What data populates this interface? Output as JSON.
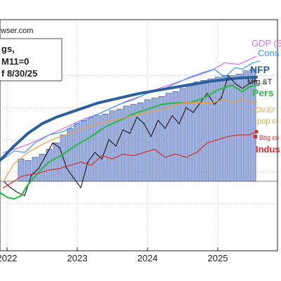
{
  "chart_data": {
    "type": "line",
    "source_text": "wser.com",
    "header_lines": [
      "gs,",
      "M11=0",
      "f 8/30/25"
    ],
    "x_tick_labels": [
      "2022",
      "2023",
      "2024",
      "2025"
    ],
    "x_tick_years": [
      2022,
      2023,
      2024,
      2025
    ],
    "xlim": [
      2021.9,
      2025.85
    ],
    "ylim": [
      0,
      100
    ],
    "bar_series": {
      "name": "GDP (S",
      "color": "#9aaee0",
      "x": [
        2022.2,
        2022.3,
        2022.4,
        2022.5,
        2022.6,
        2022.7,
        2022.8,
        2022.9,
        2023.0,
        2023.1,
        2023.2,
        2023.3,
        2023.4,
        2023.5,
        2023.6,
        2023.7,
        2023.8,
        2023.9,
        2024.0,
        2024.1,
        2024.2,
        2024.3,
        2024.4,
        2024.5,
        2024.6,
        2024.7,
        2024.8,
        2024.9,
        2025.0,
        2025.1,
        2025.2,
        2025.3,
        2025.4,
        2025.5
      ],
      "values": [
        28,
        27,
        29,
        31,
        34,
        38,
        43,
        47,
        50,
        52,
        54,
        55,
        56,
        58,
        59,
        61,
        62,
        63,
        65,
        66,
        67,
        69,
        70,
        72,
        74,
        76,
        77,
        78,
        79,
        80,
        80,
        81,
        83,
        84
      ]
    },
    "series": [
      {
        "name": "GDP (S",
        "color": "#e868e8",
        "width": 1.2,
        "x": [
          2021.95,
          2022.1,
          2022.3,
          2022.5,
          2022.7,
          2022.9,
          2023.1,
          2023.3,
          2023.5,
          2023.7,
          2023.9,
          2024.1,
          2024.3,
          2024.5,
          2024.7,
          2024.9,
          2025.1,
          2025.3,
          2025.45,
          2025.55
        ],
        "y": [
          32,
          34,
          37,
          41,
          45,
          49,
          53,
          56,
          60,
          64,
          67,
          71,
          74,
          77,
          80,
          83,
          88,
          87,
          90,
          92
        ]
      },
      {
        "name": "Cons",
        "color": "#3399ff",
        "width": 1.2,
        "x": [
          2021.95,
          2022.1,
          2022.25,
          2022.4,
          2022.6,
          2022.8,
          2023.0,
          2023.2,
          2023.4,
          2023.6,
          2023.8,
          2024.0,
          2024.2,
          2024.4,
          2024.6,
          2024.8,
          2024.95,
          2025.1,
          2025.25,
          2025.35,
          2025.5,
          2025.6
        ],
        "y": [
          28,
          33,
          32,
          38,
          43,
          45,
          50,
          54,
          58,
          62,
          65,
          69,
          71,
          75,
          79,
          82,
          84,
          79,
          85,
          84,
          88,
          89
        ]
      },
      {
        "name": "NFP",
        "color": "#2c5f9e",
        "width": 4,
        "x": [
          2021.9,
          2022.1,
          2022.3,
          2022.5,
          2022.7,
          2022.9,
          2023.1,
          2023.3,
          2023.5,
          2023.7,
          2023.9,
          2024.1,
          2024.3,
          2024.5,
          2024.7,
          2024.9,
          2025.1,
          2025.3,
          2025.55
        ],
        "y": [
          27,
          36,
          44,
          50,
          54,
          57,
          60,
          63,
          65,
          67,
          69,
          70.5,
          72,
          73.5,
          75,
          76.5,
          77.5,
          78.5,
          79
        ]
      },
      {
        "name": "Mfg.&T",
        "color": "#222222",
        "width": 1.2,
        "x": [
          2021.95,
          2022.05,
          2022.15,
          2022.25,
          2022.35,
          2022.45,
          2022.55,
          2022.65,
          2022.75,
          2022.85,
          2022.95,
          2023.05,
          2023.15,
          2023.25,
          2023.35,
          2023.45,
          2023.55,
          2023.65,
          2023.75,
          2023.85,
          2023.95,
          2024.05,
          2024.15,
          2024.25,
          2024.35,
          2024.45,
          2024.55,
          2024.65,
          2024.75,
          2024.85,
          2024.95,
          2025.05,
          2025.15,
          2025.25,
          2025.35,
          2025.45,
          2025.55
        ],
        "y": [
          14,
          10,
          7,
          5,
          18,
          22,
          30,
          38,
          35,
          22,
          16,
          10,
          26,
          32,
          28,
          40,
          36,
          46,
          44,
          54,
          50,
          42,
          52,
          47,
          55,
          50,
          60,
          57,
          63,
          69,
          62,
          66,
          80,
          75,
          72,
          75,
          77
        ]
      },
      {
        "name": "Pers",
        "color": "#2db84d",
        "width": 2.2,
        "x": [
          2021.9,
          2022.0,
          2022.1,
          2022.2,
          2022.3,
          2022.4,
          2022.5,
          2022.6,
          2022.8,
          2023.0,
          2023.2,
          2023.4,
          2023.6,
          2023.8,
          2024.0,
          2024.2,
          2024.4,
          2024.6,
          2024.8,
          2025.0,
          2025.2,
          2025.35,
          2025.45,
          2025.55
        ],
        "y": [
          7,
          4,
          3,
          5,
          12,
          17,
          22,
          26,
          31,
          37,
          42,
          48,
          52,
          56,
          59,
          62,
          63,
          63,
          66,
          71,
          74,
          70,
          73,
          74
        ]
      },
      {
        "name": "Civ.Er pop ct",
        "color": "#f0a040",
        "width": 1.2,
        "x": [
          2021.95,
          2022.1,
          2022.3,
          2022.5,
          2022.7,
          2022.9,
          2023.1,
          2023.3,
          2023.5,
          2023.7,
          2023.9,
          2024.1,
          2024.3,
          2024.5,
          2024.7,
          2024.9,
          2025.1,
          2025.25,
          2025.35,
          2025.45,
          2025.55
        ],
        "y": [
          14,
          25,
          32,
          37,
          41,
          44,
          47,
          50,
          52,
          54,
          56,
          58,
          60,
          63,
          63,
          63,
          65,
          63,
          66,
          63,
          64
        ]
      },
      {
        "name": "Indus",
        "color": "#d62d2d",
        "width": 1.2,
        "x": [
          2021.95,
          2022.1,
          2022.2,
          2022.3,
          2022.45,
          2022.6,
          2022.75,
          2022.9,
          2023.05,
          2023.2,
          2023.35,
          2023.5,
          2023.65,
          2023.8,
          2023.95,
          2024.1,
          2024.25,
          2024.4,
          2024.55,
          2024.7,
          2024.85,
          2025.0,
          2025.15,
          2025.3,
          2025.45,
          2025.55
        ],
        "y": [
          10,
          14,
          17,
          18,
          19,
          21,
          22,
          24,
          26,
          24,
          30,
          28,
          31,
          30,
          32,
          34,
          29,
          31,
          29,
          32,
          38,
          40,
          42,
          43,
          43,
          45
        ]
      }
    ],
    "legend_labels": [
      {
        "text": "GDP (S",
        "color": "#e868e8",
        "size": 13
      },
      {
        "text": "Cons",
        "color": "#3399ff",
        "size": 13
      },
      {
        "text": "NFP",
        "color": "#2c5f9e",
        "size": 14
      },
      {
        "text": "Mfg.&T",
        "color": "#222222",
        "size": 11
      },
      {
        "text": "Pers",
        "color": "#2db84d",
        "size": 14
      },
      {
        "text": "Civ.Er",
        "color": "#f0a040",
        "size": 11
      },
      {
        "text": "pop ct",
        "color": "#f0a040",
        "size": 11
      },
      {
        "text": "Bbg co",
        "color": "#d62d2d",
        "size": 9
      },
      {
        "text": "Indus",
        "color": "#d62d2d",
        "size": 13
      }
    ],
    "grid": true
  }
}
